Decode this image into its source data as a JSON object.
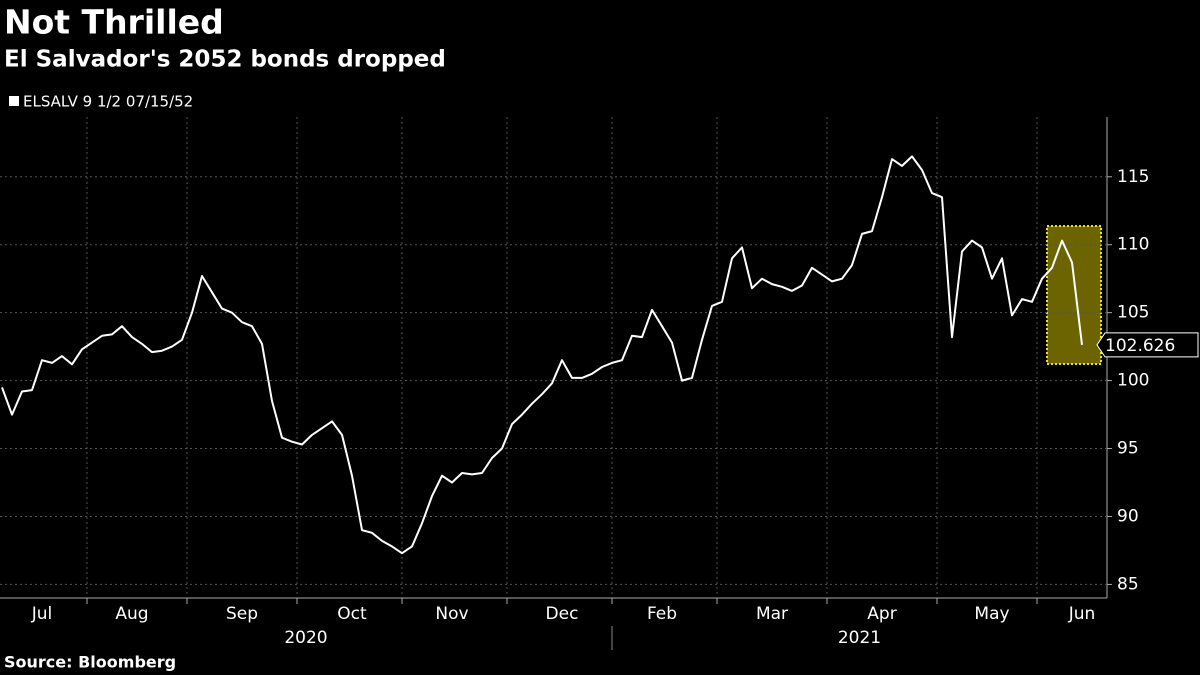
{
  "chart_data": {
    "type": "line",
    "title": "Not Thrilled",
    "subtitle": "El Salvador's 2052 bonds dropped",
    "source": "Source: Bloomberg",
    "years": [
      "2020",
      "2021"
    ],
    "categories": [
      null,
      null,
      null,
      null,
      "Jul",
      null,
      null,
      null,
      null,
      null,
      null,
      null,
      null,
      "Aug",
      null,
      null,
      null,
      null,
      null,
      null,
      null,
      null,
      null,
      null,
      "Sep",
      null,
      null,
      null,
      null,
      null,
      null,
      null,
      null,
      null,
      null,
      "Oct",
      null,
      null,
      null,
      null,
      null,
      null,
      null,
      null,
      null,
      "Nov",
      null,
      null,
      null,
      null,
      null,
      null,
      null,
      null,
      null,
      null,
      "Dec",
      null,
      null,
      null,
      null,
      null,
      null,
      null,
      null,
      null,
      "Feb",
      null,
      null,
      null,
      null,
      null,
      null,
      null,
      null,
      null,
      null,
      "Mar",
      null,
      null,
      null,
      null,
      null,
      null,
      null,
      null,
      null,
      null,
      "Apr",
      null,
      null,
      null,
      null,
      null,
      null,
      null,
      null,
      null,
      null,
      "May",
      null,
      null,
      null,
      null,
      null,
      null,
      null,
      null,
      "Jun"
    ],
    "series": [
      {
        "name": "ELSALV 9 1/2 07/15/52",
        "color": "#ffffff",
        "values": [
          99.5,
          97.5,
          99.2,
          99.3,
          101.5,
          101.3,
          101.8,
          101.2,
          102.3,
          102.8,
          103.3,
          103.4,
          104.0,
          103.2,
          102.7,
          102.1,
          102.2,
          102.5,
          103.0,
          105.0,
          107.7,
          106.5,
          105.3,
          105.0,
          104.3,
          104.0,
          102.7,
          98.5,
          95.8,
          95.5,
          95.3,
          96.0,
          96.5,
          97.0,
          96.0,
          93.0,
          89.0,
          88.8,
          88.2,
          87.8,
          87.3,
          87.8,
          89.5,
          91.5,
          93.0,
          92.5,
          93.2,
          93.1,
          93.2,
          94.3,
          95.0,
          96.8,
          97.5,
          98.3,
          99.0,
          99.8,
          101.5,
          100.2,
          100.2,
          100.5,
          101.0,
          101.3,
          101.5,
          103.3,
          103.2,
          105.2,
          104.0,
          102.8,
          100.0,
          100.2,
          103.0,
          105.5,
          105.8,
          109.0,
          109.8,
          106.8,
          107.5,
          107.1,
          106.9,
          106.6,
          107.0,
          108.3,
          107.8,
          107.3,
          107.5,
          108.5,
          110.8,
          111.0,
          113.5,
          116.3,
          115.8,
          116.5,
          115.5,
          113.8,
          113.5,
          103.2,
          109.5,
          110.3,
          109.8,
          107.5,
          109.0,
          104.8,
          106.0,
          105.8,
          107.5,
          108.3,
          110.3,
          108.7,
          102.626
        ]
      }
    ],
    "ylim": [
      84,
      119.4
    ],
    "yticks": [
      85,
      90,
      95,
      100,
      105,
      110,
      115
    ],
    "grid": true
  }
}
